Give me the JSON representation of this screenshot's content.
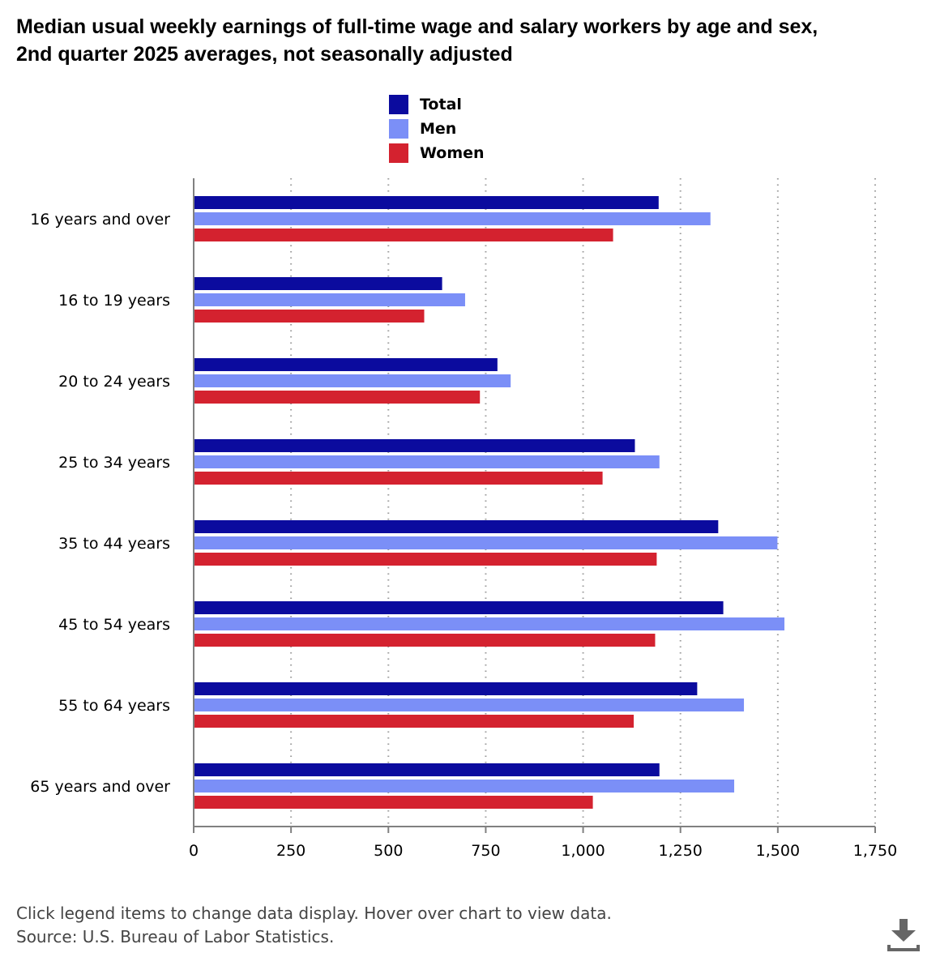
{
  "title": "Median usual weekly earnings of full-time wage and salary workers by age and sex, 2nd quarter 2025 averages, not seasonally adjusted",
  "legend": {
    "items": [
      {
        "label": "Total",
        "color": "#0b0b9e"
      },
      {
        "label": "Men",
        "color": "#7b8ff7"
      },
      {
        "label": "Women",
        "color": "#d4222f"
      }
    ]
  },
  "footer": {
    "line1": "Click legend items to change data display. Hover over chart to view data.",
    "line2": "Source: U.S. Bureau of Labor Statistics."
  },
  "download_icon": "download-icon",
  "chart_data": {
    "type": "bar",
    "orientation": "horizontal",
    "categories": [
      "16 years and over",
      "16 to 19 years",
      "20 to 24 years",
      "25 to 34 years",
      "35 to 44 years",
      "45 to 54 years",
      "55 to 64 years",
      "65 years and over"
    ],
    "series": [
      {
        "name": "Total",
        "color": "#0b0b9e",
        "values": [
          1194,
          638,
          780,
          1133,
          1347,
          1360,
          1293,
          1196
        ]
      },
      {
        "name": "Men",
        "color": "#7b8ff7",
        "values": [
          1327,
          697,
          814,
          1196,
          1499,
          1517,
          1413,
          1388
        ]
      },
      {
        "name": "Women",
        "color": "#d4222f",
        "values": [
          1077,
          592,
          735,
          1050,
          1189,
          1185,
          1130,
          1025
        ]
      }
    ],
    "xlim": [
      0,
      1750
    ],
    "xticks": [
      0,
      250,
      500,
      750,
      1000,
      1250,
      1500,
      1750
    ],
    "xtick_labels": [
      "0",
      "250",
      "500",
      "750",
      "1,000",
      "1,250",
      "1,500",
      "1,750"
    ],
    "grid": "vertical dotted",
    "legend_position": "top-center"
  }
}
